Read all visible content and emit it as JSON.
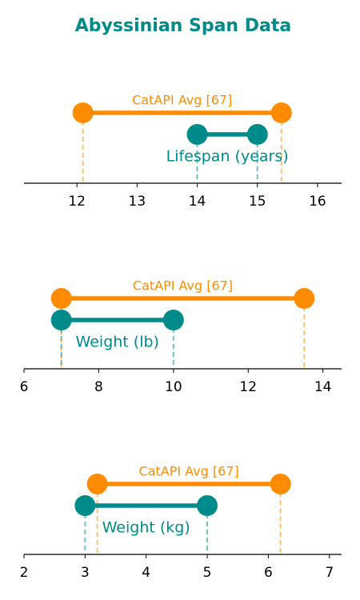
{
  "title": "Abyssinian Span Data",
  "chart_data": [
    {
      "type": "dumbbell",
      "xlim": [
        11.12,
        16.4
      ],
      "xticks": [
        12,
        13,
        14,
        15,
        16
      ],
      "series": [
        {
          "name": "CatAPI Avg [67]",
          "color": "#ff8c00",
          "values": [
            12.1,
            15.4
          ]
        },
        {
          "name": "Lifespan (years)",
          "color": "#008b8b",
          "values": [
            14,
            15
          ]
        }
      ]
    },
    {
      "type": "dumbbell",
      "xlim": [
        6,
        14.5
      ],
      "xticks": [
        6,
        8,
        10,
        12,
        14
      ],
      "series": [
        {
          "name": "CatAPI Avg [67]",
          "color": "#ff8c00",
          "values": [
            7,
            13.5
          ]
        },
        {
          "name": "Weight (lb)",
          "color": "#008b8b",
          "values": [
            7,
            10
          ]
        }
      ]
    },
    {
      "type": "dumbbell",
      "xlim": [
        2,
        7.2
      ],
      "xticks": [
        2,
        3,
        4,
        5,
        6,
        7
      ],
      "series": [
        {
          "name": "CatAPI Avg [67]",
          "color": "#ff8c00",
          "values": [
            3.2,
            6.2
          ]
        },
        {
          "name": "Weight (kg)",
          "color": "#008b8b",
          "values": [
            3,
            5
          ]
        }
      ]
    }
  ]
}
